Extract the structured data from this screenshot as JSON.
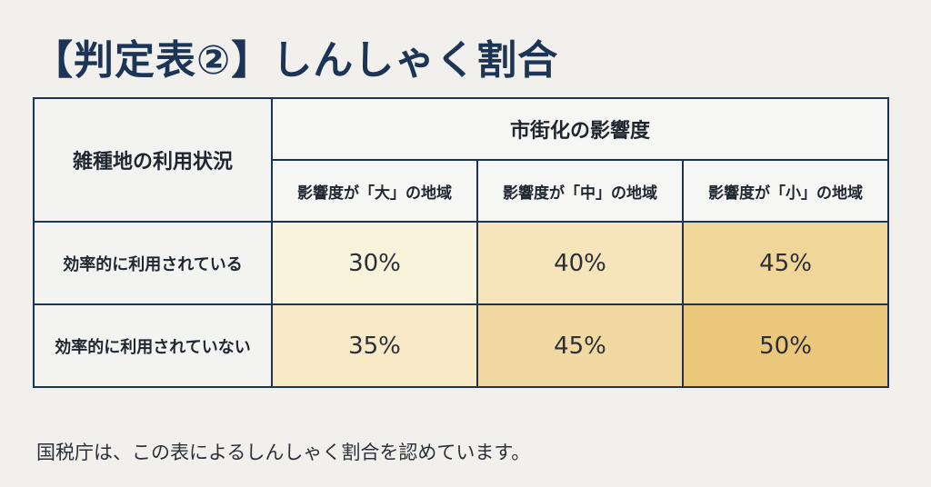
{
  "title": "【判定表②】しんしゃく割合",
  "table": {
    "corner_label": "雑種地の利用状況",
    "group_header": "市街化の影響度",
    "columns": [
      "影響度が「大」の地域",
      "影響度が「中」の地域",
      "影響度が「小」の地域"
    ],
    "rows": [
      {
        "label": "効率的に利用されている",
        "values": [
          "30%",
          "40%",
          "45%"
        ]
      },
      {
        "label": "効率的に利用されていない",
        "values": [
          "35%",
          "45%",
          "50%"
        ]
      }
    ],
    "cell_colors": [
      [
        "#faf3dc",
        "#f6e4bb",
        "#f1d699"
      ],
      [
        "#f8eac7",
        "#f2d9a2",
        "#ebc77c"
      ]
    ]
  },
  "footnote": "国税庁は、この表によるしんしゃく割合を認めています。"
}
